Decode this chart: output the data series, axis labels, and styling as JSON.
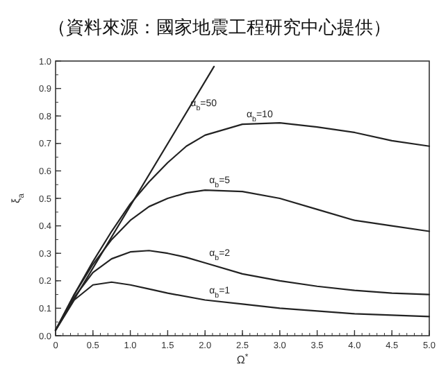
{
  "chart_data": {
    "type": "line",
    "xlabel": "Ω$^{*}$",
    "ylabel": "ξ$_{a}$",
    "annotations": [
      {
        "text": "（資料來源：國家地震工程研究中心提供）"
      },
      {
        "text": "α$_{b}$=50",
        "x": 1.75,
        "y": 0.81
      },
      {
        "text": "α$_{b}$=10",
        "x": 2.5,
        "y": 0.77
      },
      {
        "text": "α$_{b}$=5",
        "x": 2.0,
        "y": 0.53
      },
      {
        "text": "α$_{b}$=2",
        "x": 2.0,
        "y": 0.265
      },
      {
        "text": "α$_{b}$=1",
        "x": 2.0,
        "y": 0.13
      }
    ],
    "series": [
      {
        "color": "#222222",
        "x": [
          0,
          2.12
        ],
        "values": [
          0.02,
          0.98
        ]
      },
      {
        "color": "#222222",
        "x": [
          0,
          0.25,
          0.5,
          0.75,
          1.0,
          1.25,
          1.5,
          1.75,
          2.0,
          2.5,
          3.0,
          3.5,
          4.0,
          4.5,
          5.0
        ],
        "values": [
          0.02,
          0.15,
          0.27,
          0.38,
          0.48,
          0.56,
          0.63,
          0.69,
          0.73,
          0.77,
          0.775,
          0.76,
          0.74,
          0.71,
          0.69
        ]
      },
      {
        "color": "#222222",
        "x": [
          0,
          0.25,
          0.5,
          0.75,
          1.0,
          1.25,
          1.5,
          1.75,
          2.0,
          2.5,
          3.0,
          3.5,
          4.0,
          4.5,
          5.0
        ],
        "values": [
          0.02,
          0.15,
          0.26,
          0.35,
          0.42,
          0.47,
          0.5,
          0.52,
          0.53,
          0.525,
          0.5,
          0.46,
          0.42,
          0.4,
          0.38
        ]
      },
      {
        "color": "#222222",
        "x": [
          0,
          0.25,
          0.5,
          0.75,
          1.0,
          1.25,
          1.5,
          1.75,
          2.0,
          2.5,
          3.0,
          3.5,
          4.0,
          4.5,
          5.0
        ],
        "values": [
          0.02,
          0.14,
          0.23,
          0.28,
          0.305,
          0.31,
          0.3,
          0.285,
          0.265,
          0.225,
          0.2,
          0.18,
          0.165,
          0.155,
          0.15
        ]
      },
      {
        "color": "#222222",
        "x": [
          0,
          0.25,
          0.5,
          0.75,
          1.0,
          1.25,
          1.5,
          2.0,
          2.5,
          3.0,
          3.5,
          4.0,
          4.5,
          5.0
        ],
        "values": [
          0.02,
          0.13,
          0.185,
          0.195,
          0.185,
          0.17,
          0.155,
          0.13,
          0.115,
          0.1,
          0.09,
          0.08,
          0.075,
          0.07
        ]
      }
    ],
    "xlim": [
      0,
      5
    ],
    "xticks": [
      0,
      {
        "value": 0.5,
        "label": "0.5"
      },
      {
        "value": 1,
        "label": "1.0"
      },
      1.5,
      {
        "value": 2,
        "label": "2.0"
      },
      2.5,
      {
        "value": 3,
        "label": "3.0"
      },
      3.5,
      {
        "value": 4,
        "label": "4.0"
      },
      4.5,
      {
        "value": 5,
        "label": "5.0"
      }
    ],
    "ylim": [
      0,
      1
    ],
    "yticks": [
      {
        "value": 0,
        "label": "0.0"
      },
      0.1,
      0.2,
      0.3,
      0.4,
      0.5,
      0.6,
      0.7,
      0.8,
      0.9,
      {
        "value": 1,
        "label": "1.0"
      }
    ],
    "grid": false,
    "marker": "none",
    "line_style": "solid"
  }
}
